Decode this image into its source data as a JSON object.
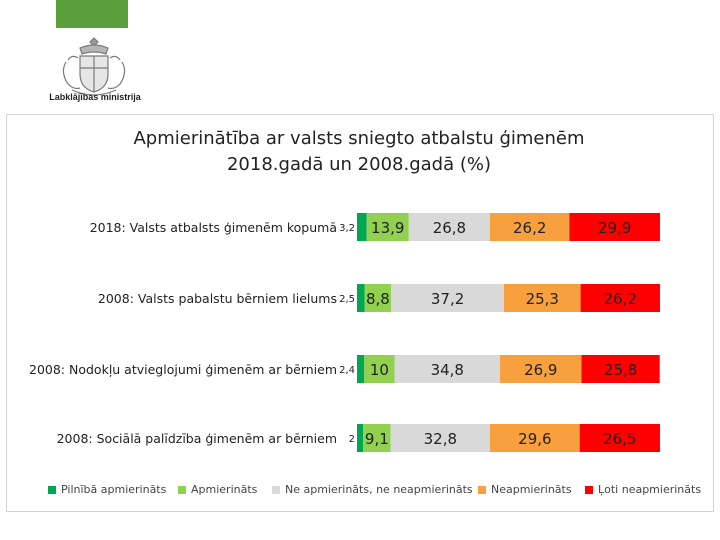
{
  "header": {
    "ministry_name": "Labklājības ministrija"
  },
  "colors": {
    "brand_green": "#5a9f3c"
  },
  "chart_data": {
    "type": "bar",
    "stacked": true,
    "orientation": "horizontal",
    "title_line1": "Apmierinātība ar valsts sniegto atbalstu ģimenēm",
    "title_line2": "2018.gadā un 2008.gadā (%)",
    "categories": [
      "2018: Valsts atbalsts ģimenēm kopumā",
      "2008: Valsts pabalstu bērniem lielums",
      "2008: Nodokļu atvieglojumi ģimenēm ar bērniem",
      "2008: Sociālā palīdzība ģimenēm ar bērniem"
    ],
    "series": [
      {
        "name": "Pilnībā apmierināts",
        "color": "#00a651",
        "values": [
          3.2,
          2.5,
          2.4,
          2
        ],
        "labels": [
          "3,2",
          "2,5",
          "2,4",
          "2"
        ]
      },
      {
        "name": "Apmierināts",
        "color": "#92d050",
        "values": [
          13.9,
          8.8,
          10,
          9.1
        ],
        "labels": [
          "13,9",
          "8,8",
          "10",
          "9,1"
        ]
      },
      {
        "name": "Ne apmierināts, ne neapmierināts",
        "color": "#d9d9d9",
        "values": [
          26.8,
          37.2,
          34.8,
          32.8
        ],
        "labels": [
          "26,8",
          "37,2",
          "34,8",
          "32,8"
        ]
      },
      {
        "name": "Neapmierināts",
        "color": "#f7a03d",
        "values": [
          26.2,
          25.3,
          26.9,
          29.6
        ],
        "labels": [
          "26,2",
          "25,3",
          "26,9",
          "29,6"
        ]
      },
      {
        "name": "Ļoti neapmierināts",
        "color": "#ff0000",
        "values": [
          29.9,
          26.2,
          25.8,
          26.5
        ],
        "labels": [
          "29,9",
          "26,2",
          "25,8",
          "26,5"
        ]
      }
    ],
    "xlim": [
      0,
      100
    ],
    "legend_position": "bottom",
    "grid": false
  }
}
